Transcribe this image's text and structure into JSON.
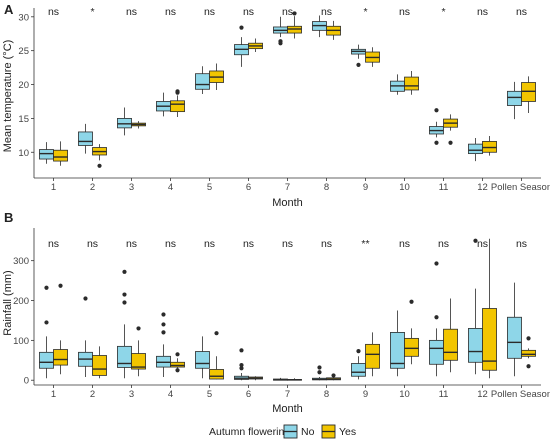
{
  "colors": {
    "no": "#8ed6e8",
    "yes": "#f2c500",
    "stroke": "#2b2b2b",
    "axis": "#333333",
    "text": "#222222"
  },
  "legend": {
    "title": "Autumn flowering",
    "items": [
      "No",
      "Yes"
    ]
  },
  "chart_data": [
    {
      "type": "boxplot",
      "panel_label": "A",
      "title": "",
      "xlabel": "Month",
      "ylabel": "Mean temperature (°C)",
      "ylim": [
        6.2,
        31.3
      ],
      "yticks": [
        10,
        15,
        20,
        25,
        30
      ],
      "categories": [
        "1",
        "2",
        "3",
        "4",
        "5",
        "6",
        "7",
        "8",
        "9",
        "10",
        "11",
        "12",
        "Pollen Season"
      ],
      "significance": [
        "ns",
        "*",
        "ns",
        "ns",
        "ns",
        "ns",
        "ns",
        "ns",
        "*",
        "ns",
        "*",
        "ns",
        "ns"
      ],
      "series": [
        {
          "name": "No",
          "boxes": [
            {
              "min": 8.3,
              "q1": 9.0,
              "median": 9.8,
              "q3": 10.4,
              "max": 11.5,
              "outliers": []
            },
            {
              "min": 9.8,
              "q1": 11.0,
              "median": 11.6,
              "q3": 13.0,
              "max": 14.2,
              "outliers": []
            },
            {
              "min": 12.5,
              "q1": 13.6,
              "median": 14.2,
              "q3": 15.0,
              "max": 16.6,
              "outliers": []
            },
            {
              "min": 15.3,
              "q1": 16.1,
              "median": 16.8,
              "q3": 17.5,
              "max": 18.8,
              "outliers": []
            },
            {
              "min": 18.6,
              "q1": 19.3,
              "median": 20.0,
              "q3": 21.6,
              "max": 22.7,
              "outliers": []
            },
            {
              "min": 22.6,
              "q1": 24.4,
              "median": 25.2,
              "q3": 25.9,
              "max": 27.0,
              "outliers": [
                28.4
              ]
            },
            {
              "min": 27.0,
              "q1": 27.6,
              "median": 28.0,
              "q3": 28.5,
              "max": 30.0,
              "outliers": [
                26.1,
                26.4
              ]
            },
            {
              "min": 27.0,
              "q1": 28.0,
              "median": 28.7,
              "q3": 29.3,
              "max": 30.2,
              "outliers": []
            },
            {
              "min": 23.8,
              "q1": 24.5,
              "median": 24.9,
              "q3": 25.2,
              "max": 25.9,
              "outliers": [
                22.9
              ]
            },
            {
              "min": 18.5,
              "q1": 19.0,
              "median": 19.8,
              "q3": 20.5,
              "max": 21.5,
              "outliers": []
            },
            {
              "min": 12.2,
              "q1": 12.7,
              "median": 13.2,
              "q3": 13.8,
              "max": 14.5,
              "outliers": [
                16.2,
                11.4
              ]
            },
            {
              "min": 8.7,
              "q1": 9.8,
              "median": 10.3,
              "q3": 11.2,
              "max": 12.1,
              "outliers": []
            },
            {
              "min": 14.9,
              "q1": 16.9,
              "median": 18.1,
              "q3": 19.0,
              "max": 20.4,
              "outliers": []
            }
          ]
        },
        {
          "name": "Yes",
          "boxes": [
            {
              "min": 8.0,
              "q1": 8.7,
              "median": 9.3,
              "q3": 10.3,
              "max": 11.6,
              "outliers": []
            },
            {
              "min": 8.8,
              "q1": 9.6,
              "median": 10.1,
              "q3": 10.7,
              "max": 11.2,
              "outliers": [
                8.0
              ]
            },
            {
              "min": 13.5,
              "q1": 13.9,
              "median": 14.1,
              "q3": 14.3,
              "max": 14.6,
              "outliers": []
            },
            {
              "min": 15.2,
              "q1": 16.0,
              "median": 17.1,
              "q3": 17.6,
              "max": 18.4,
              "outliers": [
                18.8,
                19.0
              ]
            },
            {
              "min": 19.2,
              "q1": 20.3,
              "median": 21.1,
              "q3": 22.0,
              "max": 23.1,
              "outliers": []
            },
            {
              "min": 24.8,
              "q1": 25.3,
              "median": 25.7,
              "q3": 26.1,
              "max": 26.8,
              "outliers": []
            },
            {
              "min": 26.8,
              "q1": 27.6,
              "median": 28.2,
              "q3": 28.6,
              "max": 30.1,
              "outliers": [
                30.5
              ]
            },
            {
              "min": 26.6,
              "q1": 27.3,
              "median": 28.0,
              "q3": 28.6,
              "max": 29.4,
              "outliers": []
            },
            {
              "min": 22.6,
              "q1": 23.3,
              "median": 24.0,
              "q3": 24.8,
              "max": 25.5,
              "outliers": []
            },
            {
              "min": 18.5,
              "q1": 19.2,
              "median": 19.8,
              "q3": 21.1,
              "max": 22.0,
              "outliers": []
            },
            {
              "min": 13.2,
              "q1": 13.7,
              "median": 14.3,
              "q3": 14.9,
              "max": 15.6,
              "outliers": [
                11.4
              ]
            },
            {
              "min": 9.5,
              "q1": 10.0,
              "median": 10.7,
              "q3": 11.6,
              "max": 12.4,
              "outliers": []
            },
            {
              "min": 15.8,
              "q1": 17.5,
              "median": 19.0,
              "q3": 20.3,
              "max": 21.2,
              "outliers": []
            }
          ]
        }
      ]
    },
    {
      "type": "boxplot",
      "panel_label": "B",
      "title": "",
      "xlabel": "Month",
      "ylabel": "Rainfall (mm)",
      "ylim": [
        -12,
        382
      ],
      "yticks": [
        0,
        100,
        200,
        300
      ],
      "categories": [
        "1",
        "2",
        "3",
        "4",
        "5",
        "6",
        "7",
        "8",
        "9",
        "10",
        "11",
        "12",
        "Pollen Season"
      ],
      "significance": [
        "ns",
        "ns",
        "ns",
        "ns",
        "ns",
        "ns",
        "ns",
        "ns",
        "**",
        "ns",
        "ns",
        "ns",
        "ns"
      ],
      "series": [
        {
          "name": "No",
          "boxes": [
            {
              "min": 5,
              "q1": 30,
              "median": 45,
              "q3": 70,
              "max": 110,
              "outliers": [
                145,
                232
              ]
            },
            {
              "min": 8,
              "q1": 35,
              "median": 53,
              "q3": 70,
              "max": 100,
              "outliers": [
                205
              ]
            },
            {
              "min": 5,
              "q1": 32,
              "median": 42,
              "q3": 85,
              "max": 140,
              "outliers": [
                195,
                215,
                272
              ]
            },
            {
              "min": 8,
              "q1": 33,
              "median": 45,
              "q3": 60,
              "max": 90,
              "outliers": [
                120,
                140,
                165
              ]
            },
            {
              "min": 5,
              "q1": 30,
              "median": 42,
              "q3": 72,
              "max": 110,
              "outliers": []
            },
            {
              "min": 0,
              "q1": 2,
              "median": 5,
              "q3": 10,
              "max": 18,
              "outliers": [
                30,
                38,
                75
              ]
            },
            {
              "min": 0,
              "q1": 0,
              "median": 1,
              "q3": 3,
              "max": 6,
              "outliers": []
            },
            {
              "min": 0,
              "q1": 1,
              "median": 2,
              "q3": 5,
              "max": 8,
              "outliers": [
                20,
                32
              ]
            },
            {
              "min": 2,
              "q1": 10,
              "median": 20,
              "q3": 42,
              "max": 60,
              "outliers": [
                73
              ]
            },
            {
              "min": 10,
              "q1": 30,
              "median": 42,
              "q3": 120,
              "max": 175,
              "outliers": []
            },
            {
              "min": 10,
              "q1": 40,
              "median": 80,
              "q3": 100,
              "max": 130,
              "outliers": [
                158,
                293
              ]
            },
            {
              "min": 15,
              "q1": 45,
              "median": 72,
              "q3": 130,
              "max": 230,
              "outliers": [
                350
              ]
            },
            {
              "min": 10,
              "q1": 55,
              "median": 95,
              "q3": 158,
              "max": 245,
              "outliers": []
            }
          ]
        },
        {
          "name": "Yes",
          "boxes": [
            {
              "min": 15,
              "q1": 38,
              "median": 52,
              "q3": 77,
              "max": 100,
              "outliers": [
                237
              ]
            },
            {
              "min": 5,
              "q1": 12,
              "median": 28,
              "q3": 62,
              "max": 85,
              "outliers": []
            },
            {
              "min": 10,
              "q1": 28,
              "median": 33,
              "q3": 67,
              "max": 100,
              "outliers": [
                130
              ]
            },
            {
              "min": 25,
              "q1": 33,
              "median": 37,
              "q3": 45,
              "max": 55,
              "outliers": [
                25,
                65
              ]
            },
            {
              "min": 2,
              "q1": 3,
              "median": 10,
              "q3": 27,
              "max": 60,
              "outliers": [
                118
              ]
            },
            {
              "min": 0,
              "q1": 3,
              "median": 5,
              "q3": 8,
              "max": 10,
              "outliers": []
            },
            {
              "min": 0,
              "q1": 0,
              "median": 1,
              "q3": 2,
              "max": 5,
              "outliers": []
            },
            {
              "min": 0,
              "q1": 1,
              "median": 3,
              "q3": 6,
              "max": 10,
              "outliers": [
                12
              ]
            },
            {
              "min": 10,
              "q1": 30,
              "median": 65,
              "q3": 90,
              "max": 120,
              "outliers": []
            },
            {
              "min": 40,
              "q1": 60,
              "median": 80,
              "q3": 105,
              "max": 130,
              "outliers": [
                197
              ]
            },
            {
              "min": 20,
              "q1": 50,
              "median": 70,
              "q3": 128,
              "max": 205,
              "outliers": []
            },
            {
              "min": 5,
              "q1": 25,
              "median": 48,
              "q3": 180,
              "max": 355,
              "outliers": []
            },
            {
              "min": 55,
              "q1": 60,
              "median": 65,
              "q3": 75,
              "max": 80,
              "outliers": [
                35,
                105
              ]
            }
          ]
        }
      ]
    }
  ]
}
